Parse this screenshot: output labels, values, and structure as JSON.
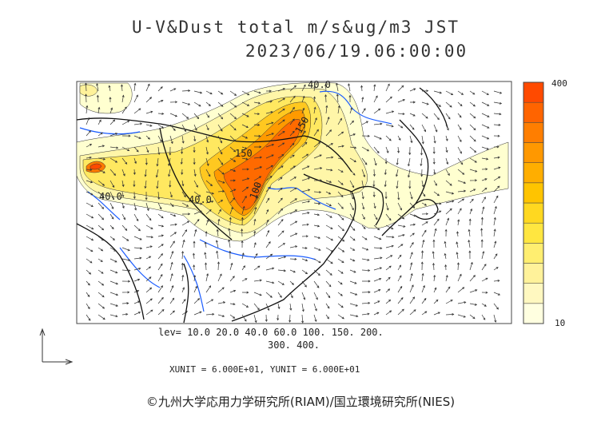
{
  "title_line1": "U-V&Dust total m/s&ug/m3 JST",
  "title_line2": "2023/06/19.06:00:00",
  "levels_line1": "lev= 10.0 20.0 40.0 60.0 100. 150. 200.",
  "levels_line2": "300. 400.",
  "units_text": "XUNIT = 6.000E+01, YUNIT = 6.000E+01",
  "copyright": "©九州大学応用力学研究所(RIAM)/国立環境研究所(NIES)",
  "colorbar": {
    "max_label": "400",
    "min_label": "10",
    "colors": [
      "#ffffe0",
      "#fff8c0",
      "#fff29a",
      "#ffee70",
      "#ffe640",
      "#ffd820",
      "#ffc400",
      "#ffae00",
      "#ff9800",
      "#ff7e00",
      "#ff6400",
      "#ff4a00"
    ]
  },
  "contour_labels": [
    {
      "id": "c40a",
      "text": "40.0"
    },
    {
      "id": "c40b",
      "text": "40.0"
    },
    {
      "id": "c40c",
      "text": "40.0"
    },
    {
      "id": "c150",
      "text": "150"
    },
    {
      "id": "c100",
      "text": "100"
    },
    {
      "id": "c150b",
      "text": "150"
    }
  ],
  "colors": {
    "coast": "#111111",
    "river": "#1a5cff",
    "frame": "#444444"
  }
}
